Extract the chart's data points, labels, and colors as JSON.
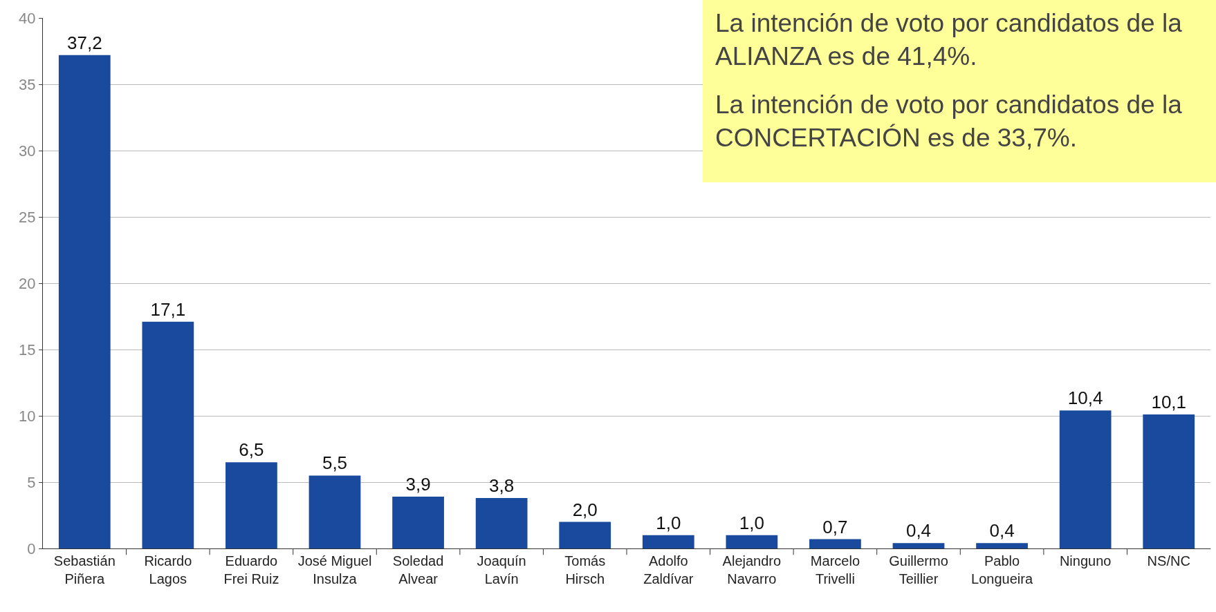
{
  "chart_data": {
    "type": "bar",
    "categories": [
      "Sebastián\nPiñera",
      "Ricardo\nLagos",
      "Eduardo\nFrei Ruiz",
      "José Miguel\nInsulza",
      "Soledad\nAlvear",
      "Joaquín\nLavín",
      "Tomás\nHirsch",
      "Adolfo\nZaldívar",
      "Alejandro\nNavarro",
      "Marcelo\nTrivelli",
      "Guillermo\nTeillier",
      "Pablo\nLongueira",
      "Ninguno",
      "NS/NC"
    ],
    "values": [
      37.2,
      17.1,
      6.5,
      5.5,
      3.9,
      3.8,
      2.0,
      1.0,
      1.0,
      0.7,
      0.4,
      0.4,
      10.4,
      10.1
    ],
    "value_labels": [
      "37,2",
      "17,1",
      "6,5",
      "5,5",
      "3,9",
      "3,8",
      "2,0",
      "1,0",
      "1,0",
      "0,7",
      "0,4",
      "0,4",
      "10,4",
      "10,1"
    ],
    "color": "#1a4a9e",
    "ylim": [
      0,
      40
    ],
    "yticks": [
      0,
      5,
      10,
      15,
      20,
      25,
      30,
      35,
      40
    ],
    "grid": "y",
    "annotations": [
      "La intención de voto por candidatos de la ALIANZA es de 41,4%.",
      "La intención de voto por candidatos de la CONCERTACIÓN es de 33,7%."
    ]
  }
}
